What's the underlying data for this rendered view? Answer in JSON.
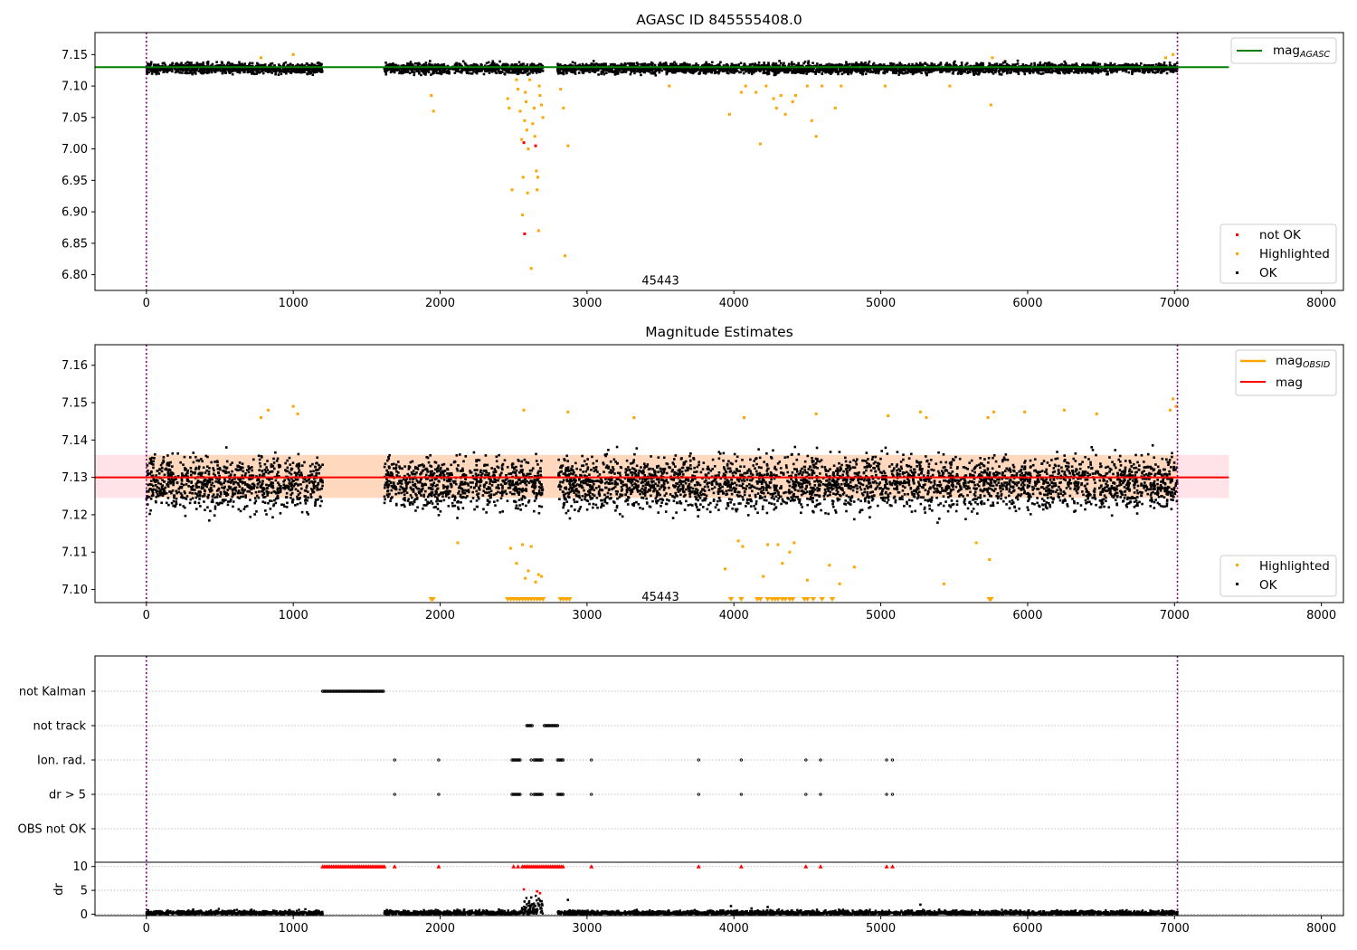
{
  "chart_data": [
    {
      "type": "scatter",
      "title": "AGASC ID 845555408.0",
      "xlim": [
        -350,
        8150
      ],
      "ylim": [
        6.775,
        7.185
      ],
      "x_ticks": [
        0,
        1000,
        2000,
        3000,
        4000,
        5000,
        6000,
        7000,
        8000
      ],
      "y_ticks": [
        6.8,
        6.85,
        6.9,
        6.95,
        7.0,
        7.05,
        7.1,
        7.15
      ],
      "x_tick_labels": [
        "0",
        "1000",
        "2000",
        "3000",
        "4000",
        "5000",
        "6000",
        "7000",
        "8000"
      ],
      "y_tick_labels": [
        "6.80",
        "6.85",
        "6.90",
        "6.95",
        "7.00",
        "7.05",
        "7.10",
        "7.15"
      ],
      "vlines": [
        0,
        7020
      ],
      "hline": {
        "y": 7.13,
        "x_range": [
          -350,
          7370
        ],
        "color": "#008000"
      },
      "annotation": {
        "text": "45443",
        "x": 3500,
        "y": 6.79
      },
      "ok_band": {
        "center": 7.128,
        "spread": 0.004
      },
      "segments": [
        [
          0,
          1200
        ],
        [
          1620,
          2700
        ],
        [
          2800,
          7020
        ]
      ],
      "series": [
        {
          "name": "not OK",
          "color": "#ff0000",
          "points": [
            [
              2570,
              7.01
            ],
            [
              2650,
              7.005
            ],
            [
              2575,
              6.865
            ]
          ]
        },
        {
          "name": "Highlighted",
          "color": "#ffa500",
          "points": [
            [
              780,
              7.145
            ],
            [
              1000,
              7.15
            ],
            [
              1940,
              7.085
            ],
            [
              1955,
              7.06
            ],
            [
              2460,
              7.08
            ],
            [
              2470,
              7.065
            ],
            [
              2490,
              6.935
            ],
            [
              2520,
              7.11
            ],
            [
              2530,
              7.095
            ],
            [
              2545,
              7.06
            ],
            [
              2555,
              7.015
            ],
            [
              2560,
              6.895
            ],
            [
              2565,
              6.955
            ],
            [
              2575,
              7.045
            ],
            [
              2580,
              7.09
            ],
            [
              2585,
              7.075
            ],
            [
              2590,
              7.03
            ],
            [
              2595,
              6.93
            ],
            [
              2600,
              7.0
            ],
            [
              2610,
              7.11
            ],
            [
              2620,
              6.81
            ],
            [
              2630,
              7.04
            ],
            [
              2640,
              7.065
            ],
            [
              2645,
              7.02
            ],
            [
              2655,
              6.965
            ],
            [
              2660,
              6.935
            ],
            [
              2665,
              6.955
            ],
            [
              2670,
              6.87
            ],
            [
              2675,
              7.1
            ],
            [
              2680,
              7.085
            ],
            [
              2690,
              7.07
            ],
            [
              2700,
              7.05
            ],
            [
              2820,
              7.095
            ],
            [
              2840,
              7.065
            ],
            [
              2850,
              6.83
            ],
            [
              2870,
              7.005
            ],
            [
              3560,
              7.1
            ],
            [
              3970,
              7.055
            ],
            [
              4050,
              7.09
            ],
            [
              4080,
              7.1
            ],
            [
              4150,
              7.09
            ],
            [
              4180,
              7.008
            ],
            [
              4220,
              7.1
            ],
            [
              4270,
              7.08
            ],
            [
              4290,
              7.065
            ],
            [
              4320,
              7.085
            ],
            [
              4350,
              7.055
            ],
            [
              4400,
              7.075
            ],
            [
              4420,
              7.085
            ],
            [
              4500,
              7.1
            ],
            [
              4530,
              7.045
            ],
            [
              4560,
              7.02
            ],
            [
              4600,
              7.1
            ],
            [
              4690,
              7.065
            ],
            [
              4730,
              7.1
            ],
            [
              5030,
              7.1
            ],
            [
              5470,
              7.1
            ],
            [
              5750,
              7.07
            ],
            [
              5760,
              7.145
            ],
            [
              6940,
              7.145
            ],
            [
              6990,
              7.15
            ]
          ]
        },
        {
          "name": "OK",
          "color": "#000000",
          "points": []
        }
      ],
      "legend": {
        "lines": [
          {
            "name": "mag",
            "sub": "AGASC",
            "color": "#008000"
          }
        ],
        "points_position": "lower right",
        "lines_position": "upper right"
      }
    },
    {
      "type": "scatter",
      "title": "Magnitude Estimates",
      "xlim": [
        -350,
        8150
      ],
      "ylim": [
        7.0965,
        7.1655
      ],
      "x_ticks": [
        0,
        1000,
        2000,
        3000,
        4000,
        5000,
        6000,
        7000,
        8000
      ],
      "y_ticks": [
        7.1,
        7.11,
        7.12,
        7.13,
        7.14,
        7.15,
        7.16
      ],
      "x_tick_labels": [
        "0",
        "1000",
        "2000",
        "3000",
        "4000",
        "5000",
        "6000",
        "7000",
        "8000"
      ],
      "y_tick_labels": [
        "7.10",
        "7.11",
        "7.12",
        "7.13",
        "7.14",
        "7.15",
        "7.16"
      ],
      "vlines": [
        0,
        7020
      ],
      "mag_line": {
        "y": 7.13,
        "x_range": [
          -350,
          7370
        ],
        "color": "#ff0000"
      },
      "mag_band": {
        "y0": 7.1245,
        "y1": 7.136,
        "x_range": [
          -350,
          7370
        ],
        "color": "#ffc0cb"
      },
      "obsid_band": {
        "y0": 7.1245,
        "y1": 7.136,
        "x_range": [
          0,
          7020
        ],
        "color": "#ffa500"
      },
      "annotation": {
        "text": "45443",
        "x": 3500,
        "y": 7.098
      },
      "ok_band": {
        "center": 7.1285,
        "spread": 0.0035
      },
      "segments": [
        [
          0,
          1200
        ],
        [
          1620,
          2700
        ],
        [
          2800,
          7020
        ]
      ],
      "series": [
        {
          "name": "Highlighted",
          "color": "#ffa500",
          "points": [
            [
              780,
              7.146
            ],
            [
              830,
              7.148
            ],
            [
              1000,
              7.149
            ],
            [
              1030,
              7.147
            ],
            [
              2120,
              7.1125
            ],
            [
              2570,
              7.148
            ],
            [
              2870,
              7.1475
            ],
            [
              2480,
              7.111
            ],
            [
              2520,
              7.107
            ],
            [
              2560,
              7.112
            ],
            [
              2580,
              7.103
            ],
            [
              2600,
              7.105
            ],
            [
              2620,
              7.1115
            ],
            [
              2650,
              7.102
            ],
            [
              2670,
              7.104
            ],
            [
              2690,
              7.1035
            ],
            [
              3320,
              7.146
            ],
            [
              3940,
              7.1055
            ],
            [
              4030,
              7.113
            ],
            [
              4060,
              7.1115
            ],
            [
              4070,
              7.146
            ],
            [
              4200,
              7.1035
            ],
            [
              4230,
              7.112
            ],
            [
              4300,
              7.112
            ],
            [
              4380,
              7.11
            ],
            [
              4410,
              7.1125
            ],
            [
              4330,
              7.107
            ],
            [
              4500,
              7.1025
            ],
            [
              4560,
              7.147
            ],
            [
              4650,
              7.1065
            ],
            [
              4720,
              7.1015
            ],
            [
              4820,
              7.106
            ],
            [
              5050,
              7.1465
            ],
            [
              5270,
              7.1475
            ],
            [
              5310,
              7.146
            ],
            [
              5430,
              7.1015
            ],
            [
              5650,
              7.1125
            ],
            [
              5740,
              7.108
            ],
            [
              5730,
              7.146
            ],
            [
              5770,
              7.1475
            ],
            [
              5980,
              7.1475
            ],
            [
              6250,
              7.148
            ],
            [
              6470,
              7.147
            ],
            [
              6970,
              7.148
            ],
            [
              6990,
              7.151
            ],
            [
              7010,
              7.149
            ]
          ]
        },
        {
          "name": "OK",
          "color": "#000000",
          "points": []
        }
      ],
      "clipped_markers": [
        1940,
        1950,
        2460,
        2480,
        2500,
        2520,
        2540,
        2560,
        2580,
        2600,
        2620,
        2640,
        2660,
        2680,
        2700,
        2820,
        2840,
        2860,
        2880,
        3980,
        4050,
        4160,
        4180,
        4230,
        4260,
        4280,
        4300,
        4330,
        4350,
        4380,
        4400,
        4480,
        4500,
        4540,
        4600,
        4670,
        5740,
        5750
      ],
      "legend": {
        "lines": [
          {
            "name": "mag",
            "sub": "OBSID",
            "color": "#ffa500"
          },
          {
            "name": "mag",
            "sub": "",
            "color": "#ff0000"
          }
        ],
        "points_position": "lower right",
        "lines_position": "upper right"
      }
    },
    {
      "type": "scatter",
      "title": "",
      "xlim": [
        -350,
        8150
      ],
      "x_ticks": [
        0,
        1000,
        2000,
        3000,
        4000,
        5000,
        6000,
        7000,
        8000
      ],
      "x_tick_labels": [
        "0",
        "1000",
        "2000",
        "3000",
        "4000",
        "5000",
        "6000",
        "7000",
        "8000"
      ],
      "vlines": [
        0,
        7020
      ],
      "flag_rows": [
        {
          "label": "not Kalman",
          "ranges": [
            [
              1200,
              1620
            ]
          ],
          "x": []
        },
        {
          "label": "not track",
          "ranges": [
            [
              2590,
              2630
            ],
            [
              2710,
              2800
            ]
          ],
          "x": []
        },
        {
          "label": "Ion. rad.",
          "ranges": [
            [
              2490,
              2550
            ],
            [
              2640,
              2700
            ],
            [
              2800,
              2840
            ]
          ],
          "x": [
            1690,
            1990,
            2620,
            3030,
            3760,
            4050,
            4490,
            4590,
            5040,
            5080
          ]
        },
        {
          "label": "dr > 5",
          "ranges": [
            [
              2490,
              2550
            ],
            [
              2640,
              2700
            ],
            [
              2800,
              2840
            ]
          ],
          "x": [
            1690,
            1990,
            2620,
            3030,
            3760,
            4050,
            4490,
            4590,
            5040,
            5080
          ]
        },
        {
          "label": "OBS not OK",
          "ranges": [],
          "x": []
        }
      ],
      "dr_plot": {
        "ylabel": "dr",
        "ylim": [
          -0.3,
          10.9
        ],
        "y_ticks": [
          0,
          5,
          10
        ],
        "y_tick_labels": [
          "0",
          "5",
          "10"
        ],
        "segments": [
          [
            0,
            1200
          ],
          [
            1620,
            2700
          ],
          [
            2800,
            7020
          ]
        ],
        "capped_ranges": [
          [
            1200,
            1620
          ],
          [
            2560,
            2840
          ]
        ],
        "capped_x": [
          1690,
          1990,
          2500,
          2530,
          3030,
          3760,
          4050,
          4490,
          4590,
          5040,
          5080
        ],
        "outliers": [
          [
            2570,
            5.2
          ],
          [
            2660,
            4.8
          ],
          [
            2680,
            4.4
          ],
          [
            2870,
            3.0
          ],
          [
            2620,
            3.5
          ],
          [
            3980,
            1.7
          ],
          [
            4120,
            1.2
          ],
          [
            4230,
            1.5
          ],
          [
            5270,
            2.0
          ]
        ]
      }
    }
  ]
}
